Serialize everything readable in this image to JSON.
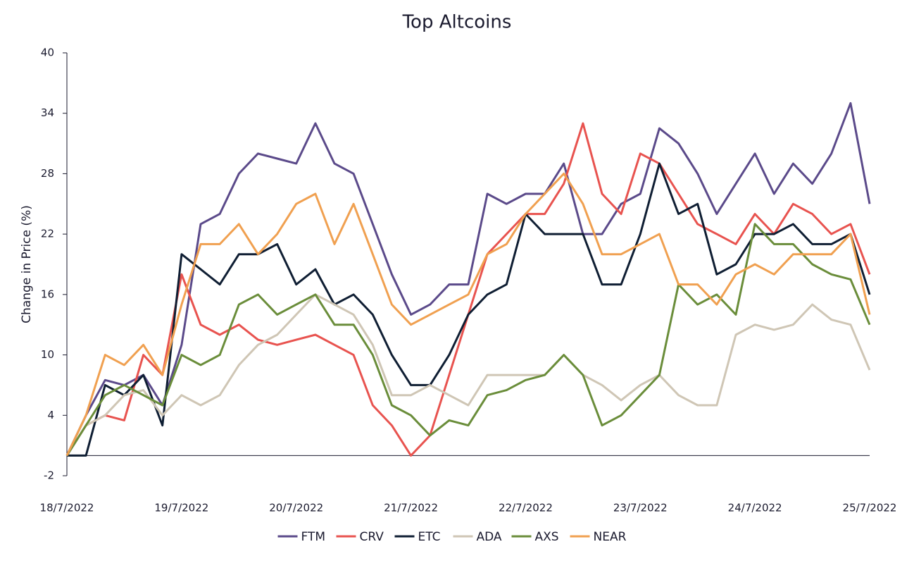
{
  "chart_data": {
    "type": "line",
    "title": "Top Altcoins",
    "y_label": "Change in Price (%)",
    "categories": [
      "18/7/2022",
      null,
      null,
      null,
      null,
      null,
      "19/7/2022",
      null,
      null,
      null,
      null,
      null,
      "20/7/2022",
      null,
      null,
      null,
      null,
      null,
      "21/7/2022",
      null,
      null,
      null,
      null,
      null,
      "22/7/2022",
      null,
      null,
      null,
      null,
      null,
      "23/7/2022",
      null,
      null,
      null,
      null,
      null,
      "24/7/2022",
      null,
      null,
      null,
      null,
      null,
      "25/7/2022"
    ],
    "ylim": [
      -2,
      40
    ],
    "yticks": [
      -2,
      4,
      10,
      16,
      22,
      28,
      34,
      40
    ],
    "grid": false,
    "legend": "bottom",
    "series": [
      {
        "name": "FTM",
        "color": "#5b4a8a",
        "values": [
          0,
          4,
          7.5,
          7,
          8,
          5,
          11,
          23,
          24,
          28,
          30,
          29.5,
          29,
          33,
          29,
          28,
          23,
          18,
          14,
          15,
          17,
          17,
          26,
          25,
          26,
          26,
          29,
          22,
          22,
          25,
          26,
          32.5,
          31,
          28,
          24,
          27,
          30,
          26,
          29,
          27,
          30,
          35,
          25
        ]
      },
      {
        "name": "CRV",
        "color": "#e8534f",
        "values": [
          0,
          3,
          4,
          3.5,
          10,
          8,
          18,
          13,
          12,
          13,
          11.5,
          11,
          11.5,
          12,
          11,
          10,
          5,
          3,
          0,
          2,
          8,
          14,
          20,
          22,
          24,
          24,
          27,
          33,
          26,
          24,
          30,
          29,
          26,
          23,
          22,
          21,
          24,
          22,
          25,
          24,
          22,
          23,
          18
        ]
      },
      {
        "name": "ETC",
        "color": "#0f1e33",
        "values": [
          0,
          0,
          7,
          6,
          8,
          3,
          20,
          18.5,
          17,
          20,
          20,
          21,
          17,
          18.5,
          15,
          16,
          14,
          10,
          7,
          7,
          10,
          14,
          16,
          17,
          24,
          22,
          22,
          22,
          17,
          17,
          22,
          29,
          24,
          25,
          18,
          19,
          22,
          22,
          23,
          21,
          21,
          22,
          16
        ]
      },
      {
        "name": "ADA",
        "color": "#cfc6b5",
        "values": [
          0,
          3,
          4,
          6,
          6.5,
          4,
          6,
          5,
          6,
          9,
          11,
          12,
          14,
          16,
          15,
          14,
          11,
          6,
          6,
          7,
          6,
          5,
          8,
          8,
          8,
          8,
          10,
          8,
          7,
          5.5,
          7,
          8,
          6,
          5,
          5,
          12,
          13,
          12.5,
          13,
          15,
          13.5,
          13,
          8.5
        ]
      },
      {
        "name": "AXS",
        "color": "#6a8d3a",
        "values": [
          0,
          3,
          6,
          7,
          6,
          5,
          10,
          9,
          10,
          15,
          16,
          14,
          15,
          16,
          13,
          13,
          10,
          5,
          4,
          2,
          3.5,
          3,
          6,
          6.5,
          7.5,
          8,
          10,
          8,
          3,
          4,
          6,
          8,
          17,
          15,
          16,
          14,
          23,
          21,
          21,
          19,
          18,
          17.5,
          13
        ]
      },
      {
        "name": "NEAR",
        "color": "#f0a050",
        "values": [
          0,
          4,
          10,
          9,
          11,
          8,
          15,
          21,
          21,
          23,
          20,
          22,
          25,
          26,
          21,
          25,
          20,
          15,
          13,
          14,
          15,
          16,
          20,
          21,
          24,
          26,
          28,
          25,
          20,
          20,
          21,
          22,
          17,
          17,
          15,
          18,
          19,
          18,
          20,
          20,
          20,
          22,
          14
        ]
      }
    ]
  }
}
